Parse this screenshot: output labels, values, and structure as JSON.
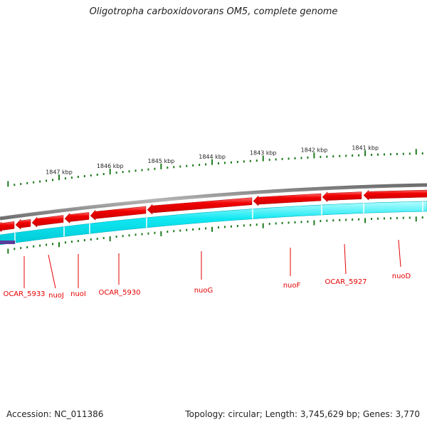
{
  "title": "Oligotropha carboxidovorans OM5, complete genome",
  "footer": {
    "accession": "Accession: NC_011386",
    "stats": "Topology: circular; Length: 3,745,629 bp; Genes: 3,770"
  },
  "colors": {
    "backbone": "#8c8c8c",
    "gene_fill": "#e60000",
    "gene_highlight": "#ff5a5a",
    "cds_fill": "#00e5ee",
    "cds_highlight": "#aafcff",
    "other_feature": "#5a3c9a",
    "tick": "#1e7a1e",
    "label": "#e60000",
    "leader": "#e60000"
  },
  "scale": {
    "unit": "kbp",
    "ticks": [
      {
        "kbp": 1847,
        "label": "1847 kbp"
      },
      {
        "kbp": 1846,
        "label": "1846 kbp"
      },
      {
        "kbp": 1845,
        "label": "1845 kbp"
      },
      {
        "kbp": 1844,
        "label": "1844 kbp"
      },
      {
        "kbp": 1843,
        "label": "1843 kbp"
      },
      {
        "kbp": 1842,
        "label": "1842 kbp"
      },
      {
        "kbp": 1841,
        "label": "1841 kbp"
      }
    ]
  },
  "genes": [
    {
      "label": "OCAR_5933",
      "strand": "-"
    },
    {
      "label": "nuoJ",
      "strand": "-"
    },
    {
      "label": "nuoI",
      "strand": "-"
    },
    {
      "label": "OCAR_5930",
      "strand": "-"
    },
    {
      "label": "nuoG",
      "strand": "-"
    },
    {
      "label": "nuoF",
      "strand": "-"
    },
    {
      "label": "OCAR_5927",
      "strand": "-"
    },
    {
      "label": "nuoD",
      "strand": "-"
    }
  ]
}
